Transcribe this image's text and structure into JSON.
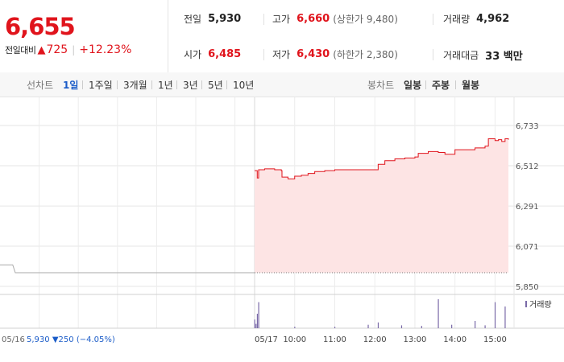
{
  "quote": {
    "price": "6,655",
    "change_label": "전일대비",
    "change_arrow": "▲",
    "change_abs": "725",
    "change_pct": "+12.23%"
  },
  "stats": {
    "prev_close": {
      "label": "전일",
      "value": "5,930"
    },
    "high": {
      "label": "고가",
      "value": "6,660",
      "sub": "(상한가 9,480)"
    },
    "volume": {
      "label": "거래량",
      "value": "4,962"
    },
    "open": {
      "label": "시가",
      "value": "6,485"
    },
    "low": {
      "label": "저가",
      "value": "6,430",
      "sub": "(하한가 2,380)"
    },
    "turnover": {
      "label": "거래대금",
      "value": "33 백만"
    }
  },
  "tabs": {
    "line_title": "선차트",
    "line_items": [
      "1일",
      "1주일",
      "3개월",
      "1년",
      "3년",
      "5년",
      "10년"
    ],
    "line_active": "1일",
    "candle_title": "봉차트",
    "candle_items": [
      "일봉",
      "주봉",
      "월봉"
    ]
  },
  "colors": {
    "up": "#e0141c",
    "down": "#1b5cc8",
    "fill": "#fde4e4",
    "prev_line": "#aaaaaa",
    "volume": "#7a6aa8"
  },
  "chart_data": {
    "type": "line",
    "y_ticks": [
      "6,733",
      "6,512",
      "6,291",
      "6,071",
      "5,850"
    ],
    "y_tick_values": [
      6733,
      6512,
      6291,
      6071,
      5850
    ],
    "ylim": [
      5850,
      6733
    ],
    "grid": true,
    "prev_day": {
      "label": "05/16",
      "close": "5,930",
      "change_arrow": "▼",
      "change": "250",
      "change_pct": "(−4.05%)",
      "series": [
        [
          0,
          5968
        ],
        [
          0.05,
          5968
        ],
        [
          0.06,
          5925
        ],
        [
          1,
          5925
        ]
      ]
    },
    "x_labels": [
      "05/17",
      "10:00",
      "11:00",
      "12:00",
      "13:00",
      "14:00",
      "15:00"
    ],
    "today_start": "09:00",
    "today_end": "15:20",
    "today": [
      [
        "09:00",
        6485
      ],
      [
        "09:03",
        6485
      ],
      [
        "09:04",
        6445
      ],
      [
        "09:05",
        6445
      ],
      [
        "09:06",
        6490
      ],
      [
        "09:15",
        6495
      ],
      [
        "09:30",
        6490
      ],
      [
        "09:40",
        6485
      ],
      [
        "09:41",
        6450
      ],
      [
        "09:50",
        6440
      ],
      [
        "10:00",
        6455
      ],
      [
        "10:10",
        6460
      ],
      [
        "10:20",
        6470
      ],
      [
        "10:30",
        6480
      ],
      [
        "10:45",
        6485
      ],
      [
        "11:00",
        6490
      ],
      [
        "11:30",
        6490
      ],
      [
        "12:00",
        6490
      ],
      [
        "12:05",
        6520
      ],
      [
        "12:15",
        6540
      ],
      [
        "12:30",
        6550
      ],
      [
        "12:45",
        6555
      ],
      [
        "13:00",
        6560
      ],
      [
        "13:05",
        6580
      ],
      [
        "13:20",
        6590
      ],
      [
        "13:35",
        6585
      ],
      [
        "13:45",
        6575
      ],
      [
        "14:00",
        6600
      ],
      [
        "14:30",
        6610
      ],
      [
        "14:45",
        6620
      ],
      [
        "14:50",
        6660
      ],
      [
        "15:00",
        6650
      ],
      [
        "15:05",
        6655
      ],
      [
        "15:10",
        6645
      ],
      [
        "15:15",
        6660
      ],
      [
        "15:20",
        6655
      ]
    ],
    "volume_label": "거래량",
    "volume": [
      [
        "09:00",
        0.3
      ],
      [
        "09:02",
        0.15
      ],
      [
        "09:04",
        0.5
      ],
      [
        "09:06",
        0.9
      ],
      [
        "10:00",
        0.05
      ],
      [
        "11:00",
        0.05
      ],
      [
        "11:50",
        0.12
      ],
      [
        "12:05",
        0.2
      ],
      [
        "12:40",
        0.1
      ],
      [
        "13:10",
        0.08
      ],
      [
        "13:35",
        1.0
      ],
      [
        "13:55",
        0.12
      ],
      [
        "14:30",
        0.25
      ],
      [
        "14:45",
        0.1
      ],
      [
        "15:00",
        0.9
      ],
      [
        "15:15",
        0.75
      ]
    ]
  }
}
